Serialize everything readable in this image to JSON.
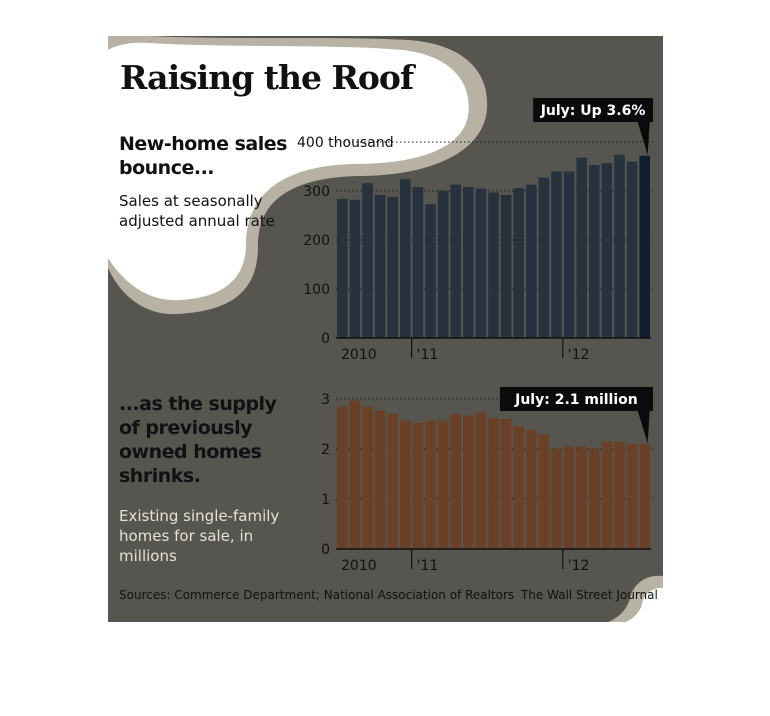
{
  "title": "Raising the Roof",
  "chart_data": [
    {
      "type": "bar",
      "title": "New-home sales bounce...",
      "subtitle": "Sales at seasonally adjusted annual rate",
      "ylim": [
        0,
        400
      ],
      "yticks": [
        "0",
        "100",
        "200",
        "300",
        "400 thousand"
      ],
      "ytick_values": [
        0,
        100,
        200,
        300,
        400
      ],
      "xtick_labels": [
        "2010",
        "'11",
        "'12"
      ],
      "xtick_index": [
        0,
        6,
        18
      ],
      "color": "#26323d",
      "highlight_color": "#0e2030",
      "annotation": "July: Up 3.6%",
      "values": [
        284,
        282,
        316,
        292,
        288,
        324,
        308,
        273,
        300,
        313,
        308,
        305,
        297,
        292,
        306,
        313,
        327,
        340,
        340,
        368,
        353,
        357,
        374,
        360,
        372
      ]
    },
    {
      "type": "bar",
      "title": "...as the supply of previously owned homes shrinks.",
      "subtitle": "Existing single-family homes for sale, in millions",
      "ylim": [
        0,
        3
      ],
      "yticks": [
        "0",
        "1",
        "2",
        "3"
      ],
      "ytick_values": [
        0,
        1,
        2,
        3
      ],
      "xtick_labels": [
        "2010",
        "'11",
        "'12"
      ],
      "xtick_index": [
        0,
        6,
        18
      ],
      "color": "#6a4026",
      "highlight_color": "#6a4026",
      "annotation": "July: 2.1 million",
      "values": [
        2.85,
        2.97,
        2.85,
        2.77,
        2.7,
        2.57,
        2.53,
        2.57,
        2.57,
        2.7,
        2.67,
        2.73,
        2.62,
        2.6,
        2.46,
        2.38,
        2.3,
        2.0,
        2.05,
        2.05,
        2.0,
        2.15,
        2.15,
        2.1,
        2.1
      ]
    }
  ],
  "source": "Sources: Commerce Department; National Association of Realtors",
  "credit": "The Wall Street Journal"
}
